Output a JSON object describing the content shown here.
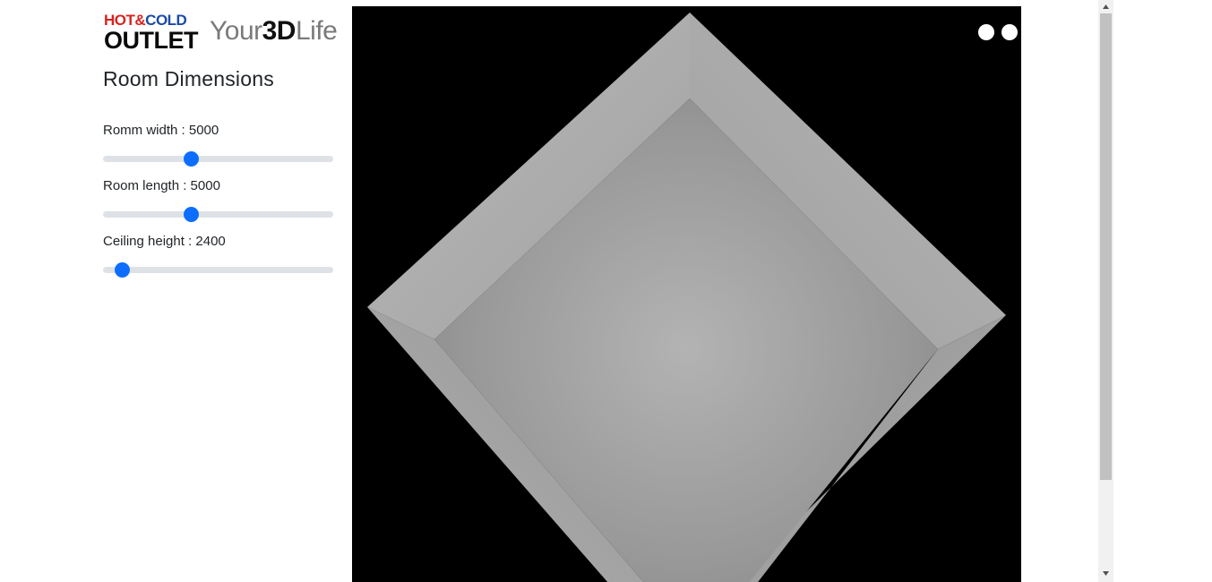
{
  "brand": {
    "logo_hot": "HOT",
    "logo_amp": "&",
    "logo_cold": "COLD",
    "logo_outlet": "OUTLET",
    "logo_your": "Your",
    "logo_3d": "3D",
    "logo_life": "Life"
  },
  "sidebar": {
    "title": "Room Dimensions",
    "controls": [
      {
        "label": "Romm width : 5000",
        "value": 5000,
        "position_fraction": 0.38
      },
      {
        "label": "Room length : 5000",
        "value": 5000,
        "position_fraction": 0.38
      },
      {
        "label": "Ceiling height : 2400",
        "value": 2400,
        "position_fraction": 0.08
      }
    ]
  },
  "viewport": {
    "background_color": "#000000",
    "view_buttons": [
      "view-dot-1",
      "view-dot-2"
    ]
  },
  "colors": {
    "accent": "#0d6efd",
    "track": "#dee2e6",
    "brand_red": "#d8231f",
    "brand_blue": "#1b4aa8"
  }
}
